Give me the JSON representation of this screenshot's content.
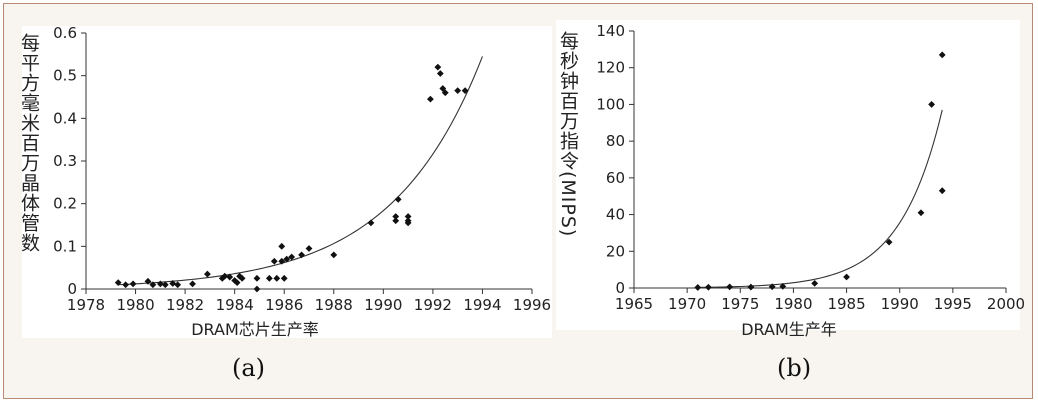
{
  "chart_data": [
    {
      "id": "a",
      "type": "scatter",
      "xlabel": "DRAM芯片生产率",
      "ylabel": "每平方毫米百万晶体管数",
      "caption": "(a)",
      "xlim": [
        1978,
        1996
      ],
      "ylim": [
        0,
        0.6
      ],
      "xticks": [
        1978,
        1980,
        1982,
        1984,
        1986,
        1988,
        1990,
        1992,
        1994,
        1996
      ],
      "yticks": [
        0,
        0.1,
        0.2,
        0.3,
        0.4,
        0.5,
        0.6
      ],
      "grid": false,
      "series": [
        {
          "points": [
            [
              1979.3,
              0.015
            ],
            [
              1979.6,
              0.01
            ],
            [
              1979.9,
              0.012
            ],
            [
              1980.5,
              0.018
            ],
            [
              1980.7,
              0.01
            ],
            [
              1981.0,
              0.012
            ],
            [
              1981.2,
              0.01
            ],
            [
              1981.5,
              0.013
            ],
            [
              1981.7,
              0.01
            ],
            [
              1982.3,
              0.012
            ],
            [
              1982.9,
              0.035
            ],
            [
              1983.5,
              0.025
            ],
            [
              1983.6,
              0.03
            ],
            [
              1983.8,
              0.028
            ],
            [
              1984.0,
              0.02
            ],
            [
              1984.1,
              0.015
            ],
            [
              1984.2,
              0.03
            ],
            [
              1984.3,
              0.025
            ],
            [
              1984.9,
              0.0
            ],
            [
              1984.9,
              0.025
            ],
            [
              1985.4,
              0.025
            ],
            [
              1985.6,
              0.065
            ],
            [
              1985.7,
              0.025
            ],
            [
              1985.9,
              0.065
            ],
            [
              1985.9,
              0.1
            ],
            [
              1986.0,
              0.025
            ],
            [
              1986.1,
              0.07
            ],
            [
              1986.3,
              0.075
            ],
            [
              1986.7,
              0.08
            ],
            [
              1987.0,
              0.095
            ],
            [
              1988.0,
              0.08
            ],
            [
              1989.5,
              0.155
            ],
            [
              1990.5,
              0.17
            ],
            [
              1990.5,
              0.16
            ],
            [
              1990.6,
              0.21
            ],
            [
              1991.0,
              0.17
            ],
            [
              1991.0,
              0.16
            ],
            [
              1991.0,
              0.155
            ],
            [
              1991.9,
              0.445
            ],
            [
              1992.2,
              0.52
            ],
            [
              1992.3,
              0.505
            ],
            [
              1992.4,
              0.47
            ],
            [
              1992.5,
              0.46
            ],
            [
              1993.0,
              0.465
            ],
            [
              1993.3,
              0.465
            ]
          ]
        }
      ],
      "trendline": {
        "type": "exponential",
        "x_range": [
          1979.3,
          1994.0
        ],
        "y_start": 0.01,
        "y_end": 0.545
      }
    },
    {
      "id": "b",
      "type": "scatter",
      "xlabel": "DRAM生产年",
      "ylabel": "每秒钟百万指令(MIPS)",
      "caption": "(b)",
      "xlim": [
        1965,
        2000
      ],
      "ylim": [
        0,
        140
      ],
      "xticks": [
        1965,
        1970,
        1975,
        1980,
        1985,
        1990,
        1995,
        2000
      ],
      "yticks": [
        0,
        20,
        40,
        60,
        80,
        100,
        120,
        140
      ],
      "grid": false,
      "series": [
        {
          "points": [
            [
              1971,
              0.3
            ],
            [
              1972,
              0.4
            ],
            [
              1974,
              0.6
            ],
            [
              1976,
              0.5
            ],
            [
              1978,
              0.7
            ],
            [
              1979,
              0.9
            ],
            [
              1982,
              2.5
            ],
            [
              1985,
              6
            ],
            [
              1989,
              25
            ],
            [
              1992,
              41
            ],
            [
              1993,
              100
            ],
            [
              1994,
              127
            ],
            [
              1994,
              53
            ]
          ]
        }
      ],
      "trendline": {
        "type": "exponential",
        "x_range": [
          1971,
          1994
        ],
        "y_start": 0.3,
        "y_end": 97
      }
    }
  ]
}
